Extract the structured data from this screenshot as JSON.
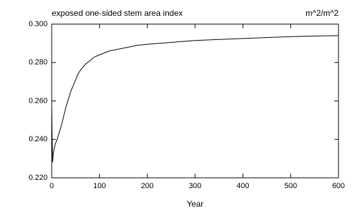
{
  "chart_data": {
    "type": "line",
    "title": "exposed one-sided stem area index",
    "units": "m^2/m^2",
    "xlabel": "Year",
    "x": [
      0,
      1,
      2,
      3,
      5,
      8,
      10,
      15,
      20,
      25,
      30,
      35,
      40,
      45,
      50,
      55,
      60,
      70,
      80,
      90,
      100,
      120,
      140,
      160,
      180,
      200,
      225,
      250,
      275,
      300,
      350,
      400,
      450,
      500,
      550,
      600
    ],
    "values": [
      0.257,
      0.24,
      0.228,
      0.232,
      0.235,
      0.238,
      0.239,
      0.243,
      0.247,
      0.252,
      0.257,
      0.261,
      0.265,
      0.268,
      0.271,
      0.274,
      0.276,
      0.279,
      0.281,
      0.283,
      0.284,
      0.286,
      0.287,
      0.288,
      0.289,
      0.2895,
      0.29,
      0.2905,
      0.291,
      0.2915,
      0.292,
      0.2925,
      0.293,
      0.2935,
      0.2938,
      0.294
    ],
    "color": "#000000",
    "xlim": [
      0,
      600
    ],
    "xticks": [
      0,
      100,
      200,
      300,
      400,
      500,
      600
    ],
    "ylim": [
      0.22,
      0.3
    ],
    "yticks": [
      {
        "value": 0.22,
        "label": "0.220"
      },
      {
        "value": 0.24,
        "label": "0.240"
      },
      {
        "value": 0.26,
        "label": "0.260"
      },
      {
        "value": 0.28,
        "label": "0.280"
      },
      {
        "value": 0.3,
        "label": "0.300"
      }
    ],
    "grid": false
  }
}
